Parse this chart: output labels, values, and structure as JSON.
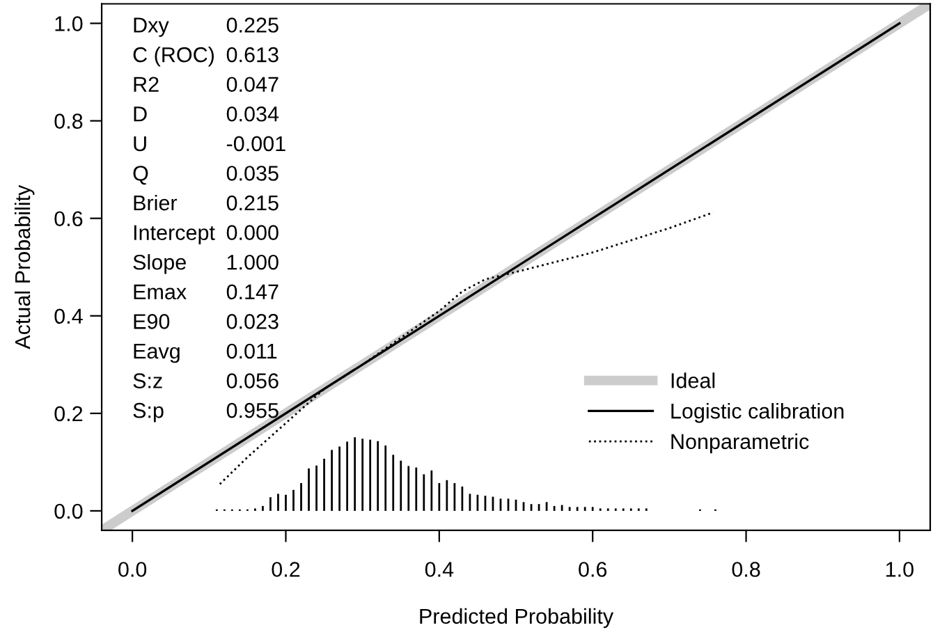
{
  "chart_data": {
    "type": "line",
    "xlabel": "Predicted Probability",
    "ylabel": "Actual Probability",
    "xlim": [
      -0.04,
      1.04
    ],
    "ylim": [
      -0.04,
      1.04
    ],
    "xticks": [
      {
        "value": 0,
        "label": "0.0"
      },
      0.2,
      0.4,
      0.6,
      0.8,
      {
        "value": 1,
        "label": "1.0"
      }
    ],
    "yticks": [
      {
        "value": 0,
        "label": "0.0"
      },
      0.2,
      0.4,
      0.6,
      0.8,
      {
        "value": 1,
        "label": "1.0"
      }
    ],
    "grid": false,
    "legend": "bottom right",
    "series": [
      {
        "name": "Ideal",
        "color": "#cccccc",
        "line_style": "solid",
        "x": [
          -0.04,
          1.04
        ],
        "values": [
          -0.04,
          1.04
        ]
      },
      {
        "name": "Logistic calibration",
        "color": "#000000",
        "line_style": "solid",
        "x": [
          0.0,
          1.0
        ],
        "values": [
          0.0,
          1.0
        ]
      },
      {
        "name": "Nonparametric",
        "color": "#000000",
        "line_style": "dotted",
        "x": [
          0.114,
          0.15,
          0.2,
          0.25,
          0.3,
          0.35,
          0.4,
          0.43,
          0.46,
          0.5,
          0.55,
          0.6,
          0.65,
          0.7,
          0.757
        ],
        "values": [
          0.055,
          0.11,
          0.18,
          0.25,
          0.3,
          0.355,
          0.41,
          0.45,
          0.475,
          0.49,
          0.51,
          0.53,
          0.555,
          0.58,
          0.612
        ]
      },
      {
        "type": "bar",
        "color": "#000000",
        "x": [
          0.11,
          0.12,
          0.13,
          0.14,
          0.15,
          0.16,
          0.17,
          0.18,
          0.19,
          0.2,
          0.21,
          0.22,
          0.23,
          0.24,
          0.25,
          0.26,
          0.27,
          0.28,
          0.29,
          0.3,
          0.31,
          0.32,
          0.33,
          0.34,
          0.35,
          0.36,
          0.37,
          0.38,
          0.39,
          0.4,
          0.41,
          0.42,
          0.43,
          0.44,
          0.45,
          0.46,
          0.47,
          0.48,
          0.49,
          0.5,
          0.51,
          0.52,
          0.53,
          0.54,
          0.55,
          0.56,
          0.57,
          0.58,
          0.59,
          0.6,
          0.61,
          0.62,
          0.63,
          0.64,
          0.65,
          0.66,
          0.67,
          0.74,
          0.76
        ],
        "values": [
          0.003,
          0.003,
          0.003,
          0.003,
          0.003,
          0.005,
          0.01,
          0.028,
          0.035,
          0.033,
          0.043,
          0.057,
          0.087,
          0.093,
          0.107,
          0.125,
          0.132,
          0.142,
          0.151,
          0.148,
          0.146,
          0.143,
          0.134,
          0.115,
          0.103,
          0.092,
          0.089,
          0.075,
          0.083,
          0.057,
          0.063,
          0.057,
          0.05,
          0.035,
          0.033,
          0.031,
          0.029,
          0.025,
          0.025,
          0.023,
          0.018,
          0.014,
          0.014,
          0.018,
          0.01,
          0.012,
          0.008,
          0.008,
          0.008,
          0.008,
          0.005,
          0.005,
          0.005,
          0.005,
          0.005,
          0.005,
          0.005,
          0.003,
          0.003
        ]
      }
    ],
    "annotations": [
      "Dxy",
      "0.225",
      "C (ROC)",
      "0.613",
      "R2",
      "0.047",
      "D",
      "0.034",
      "U",
      "-0.001",
      "Q",
      "0.035",
      "Brier",
      "0.215",
      "Intercept",
      "0.000",
      "Slope",
      "1.000",
      "Emax",
      "0.147",
      "E90",
      "0.023",
      "Eavg",
      "0.011",
      "S:z",
      "0.056",
      "S:p",
      "0.955"
    ]
  }
}
